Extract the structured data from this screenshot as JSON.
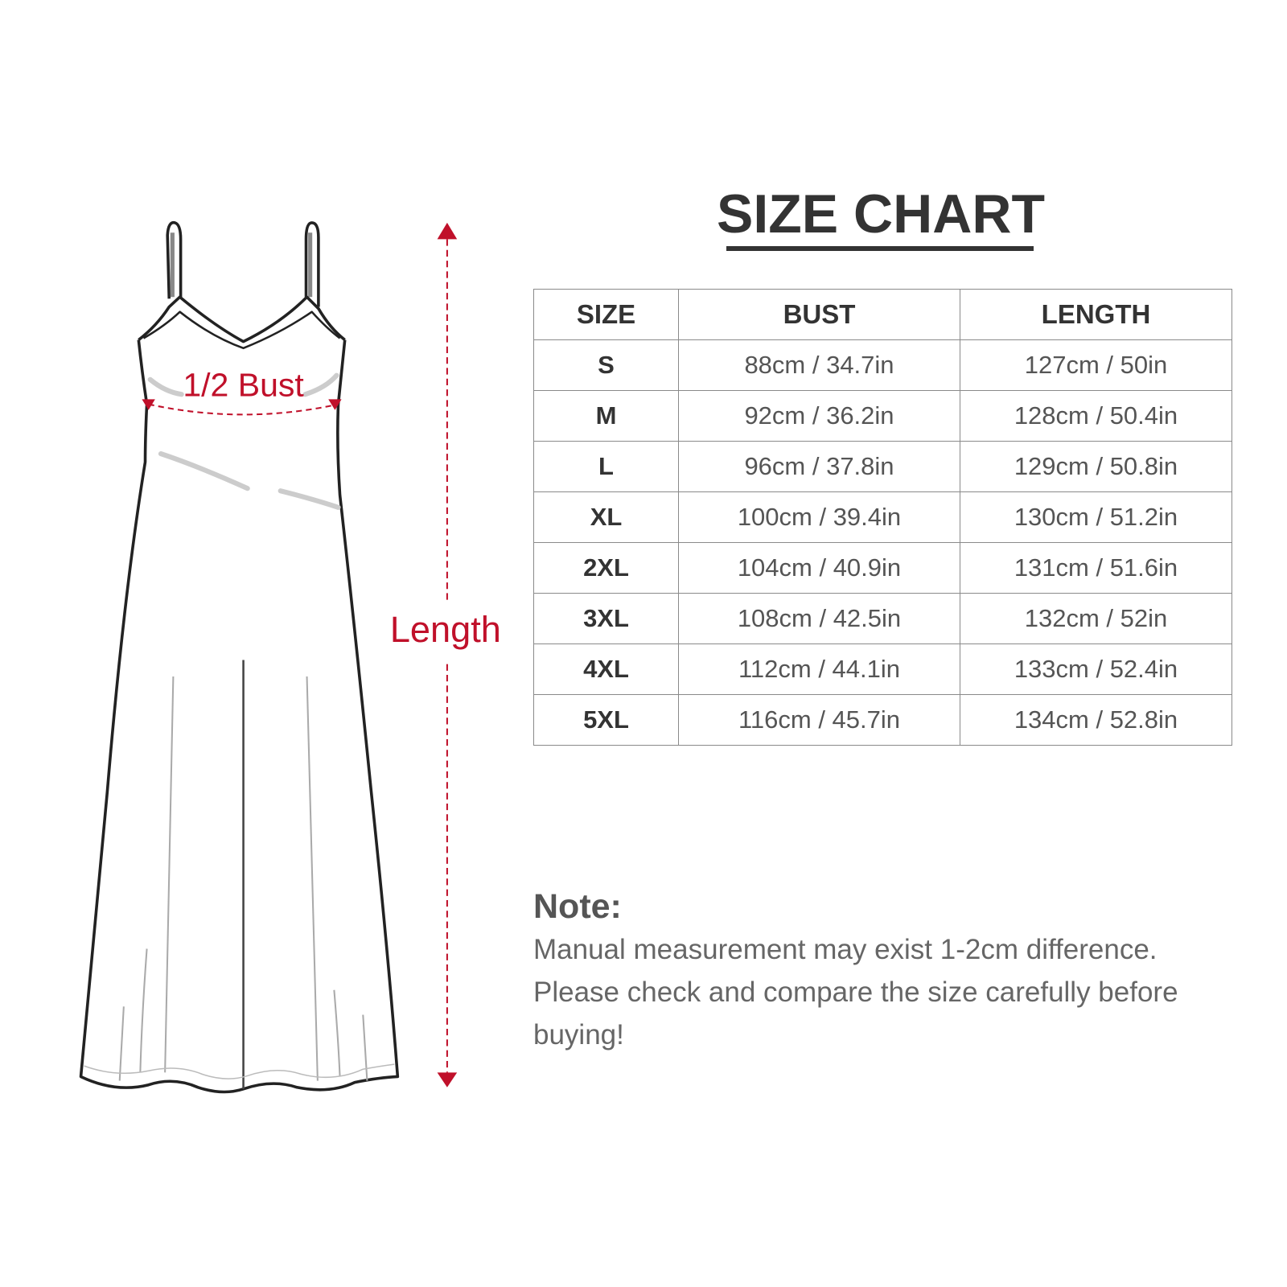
{
  "title": "SIZE CHART",
  "diagram": {
    "bust_label": "1/2 Bust",
    "length_label": "Length",
    "accent_color": "#c0102a"
  },
  "table": {
    "headers": [
      "SIZE",
      "BUST",
      "LENGTH"
    ],
    "rows": [
      [
        "S",
        "88cm / 34.7in",
        "127cm / 50in"
      ],
      [
        "M",
        "92cm / 36.2in",
        "128cm / 50.4in"
      ],
      [
        "L",
        "96cm / 37.8in",
        "129cm / 50.8in"
      ],
      [
        "XL",
        "100cm / 39.4in",
        "130cm / 51.2in"
      ],
      [
        "2XL",
        "104cm / 40.9in",
        "131cm / 51.6in"
      ],
      [
        "3XL",
        "108cm / 42.5in",
        "132cm / 52in"
      ],
      [
        "4XL",
        "112cm / 44.1in",
        "133cm / 52.4in"
      ],
      [
        "5XL",
        "116cm / 45.7in",
        "134cm / 52.8in"
      ]
    ]
  },
  "note": {
    "heading": "Note:",
    "lines": [
      "Manual measurement may exist 1-2cm difference.",
      "Please check and compare the size carefully before",
      "buying!"
    ]
  }
}
